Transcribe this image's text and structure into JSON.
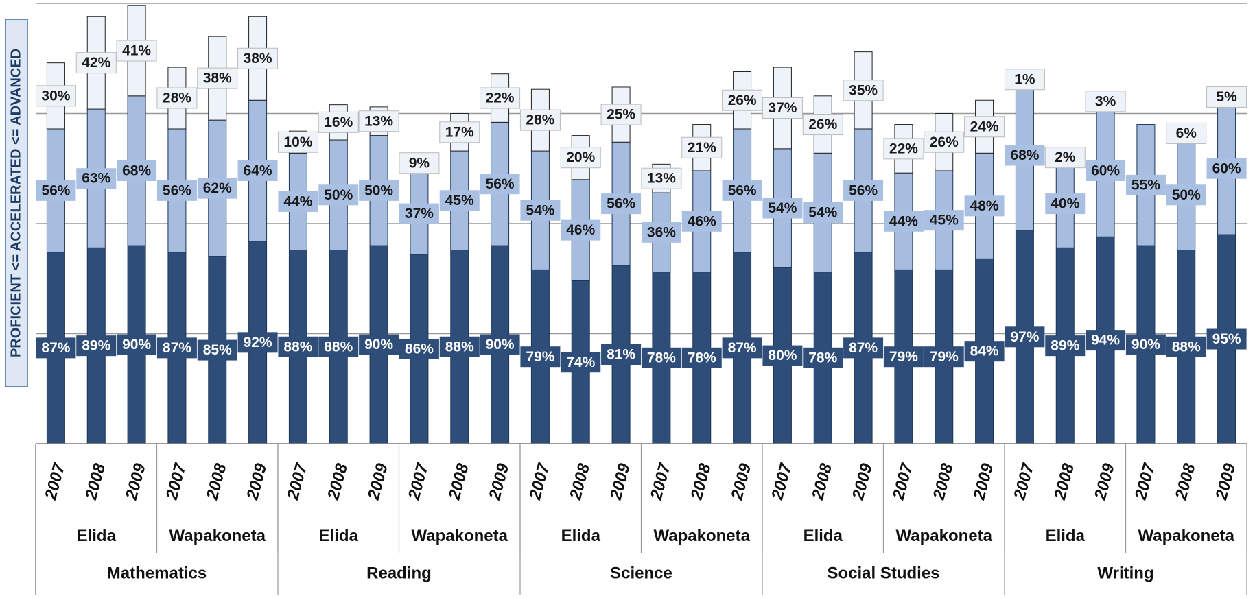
{
  "chart_data": {
    "type": "stacked-bar",
    "ylabel": "PROFICIENT <= ACCELERATED <= ADVANCED",
    "ylim": [
      0,
      200
    ],
    "yticks": [
      0,
      50,
      100,
      150,
      200
    ],
    "grid": true,
    "categories": [
      "2007",
      "2008",
      "2009",
      "2007",
      "2008",
      "2009",
      "2007",
      "2008",
      "2009",
      "2007",
      "2008",
      "2009",
      "2007",
      "2008",
      "2009",
      "2007",
      "2008",
      "2009",
      "2007",
      "2008",
      "2009",
      "2007",
      "2008",
      "2009",
      "2007",
      "2008",
      "2009",
      "2007",
      "2008",
      "2009"
    ],
    "schools": [
      "Elida",
      "Wapakoneta",
      "Elida",
      "Wapakoneta",
      "Elida",
      "Wapakoneta",
      "Elida",
      "Wapakoneta",
      "Elida",
      "Wapakoneta"
    ],
    "subjects": [
      "Mathematics",
      "Reading",
      "Science",
      "Social Studies",
      "Writing"
    ],
    "series": [
      {
        "color": "#2e4d78",
        "values": [
          87,
          89,
          90,
          87,
          85,
          92,
          88,
          88,
          90,
          86,
          88,
          90,
          79,
          74,
          81,
          78,
          78,
          87,
          80,
          78,
          87,
          79,
          79,
          84,
          97,
          89,
          94,
          90,
          88,
          95
        ],
        "value_labels": [
          "87%",
          "89%",
          "90%",
          "87%",
          "85%",
          "92%",
          "88%",
          "88%",
          "90%",
          "86%",
          "88%",
          "90%",
          "79%",
          "74%",
          "81%",
          "78%",
          "78%",
          "87%",
          "80%",
          "78%",
          "87%",
          "79%",
          "79%",
          "84%",
          "97%",
          "89%",
          "94%",
          "90%",
          "88%",
          "95%"
        ]
      },
      {
        "color": "#a6bddf",
        "values": [
          56,
          63,
          68,
          56,
          62,
          64,
          44,
          50,
          50,
          37,
          45,
          56,
          54,
          46,
          56,
          36,
          46,
          56,
          54,
          54,
          56,
          44,
          45,
          48,
          68,
          40,
          60,
          55,
          50,
          60
        ],
        "value_labels": [
          "56%",
          "63%",
          "68%",
          "56%",
          "62%",
          "64%",
          "44%",
          "50%",
          "50%",
          "37%",
          "45%",
          "56%",
          "54%",
          "46%",
          "56%",
          "36%",
          "46%",
          "56%",
          "54%",
          "54%",
          "56%",
          "44%",
          "45%",
          "48%",
          "68%",
          "40%",
          "60%",
          "55%",
          "50%",
          "60%"
        ]
      },
      {
        "color": "#eef2f9",
        "values": [
          30,
          42,
          41,
          28,
          38,
          38,
          10,
          16,
          13,
          9,
          17,
          22,
          28,
          20,
          25,
          13,
          21,
          26,
          37,
          26,
          35,
          22,
          26,
          24,
          1,
          2,
          3,
          null,
          6,
          5
        ],
        "value_labels": [
          "30%",
          "42%",
          "41%",
          "28%",
          "38%",
          "38%",
          "10%",
          "16%",
          "13%",
          "9%",
          "17%",
          "22%",
          "28%",
          "20%",
          "25%",
          "13%",
          "21%",
          "26%",
          "37%",
          "26%",
          "35%",
          "22%",
          "26%",
          "24%",
          "1%",
          "2%",
          "3%",
          null,
          "6%",
          "5%"
        ]
      }
    ]
  }
}
